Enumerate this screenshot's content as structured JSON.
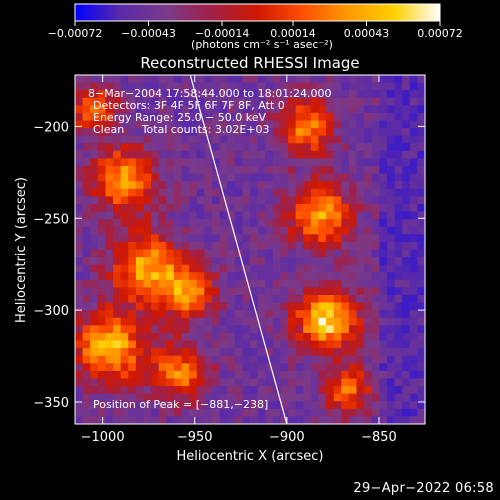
{
  "chart_data": {
    "type": "heatmap",
    "title": "Reconstructed RHESSI Image",
    "xlabel": "Heliocentric X (arcsec)",
    "ylabel": "Heliocentric Y (arcsec)",
    "xlim": [
      -1015,
      -825
    ],
    "ylim": [
      -362,
      -172
    ],
    "x_ticks": [
      -1000,
      -950,
      -900,
      -850
    ],
    "x_tick_labels": [
      "−1000",
      "−950",
      "−900",
      "−850"
    ],
    "y_ticks": [
      -200,
      -250,
      -300,
      -350
    ],
    "y_tick_labels": [
      "−200",
      "−250",
      "−300",
      "−350"
    ],
    "colorbar": {
      "ticks": [
        -0.00072,
        -0.00043,
        -0.00014,
        0.00014,
        0.00043,
        0.00072
      ],
      "tick_labels": [
        "−0.00072",
        "−0.00043",
        "−0.00014",
        "0.00014",
        "0.00043",
        "0.00072"
      ],
      "range": [
        -0.00072,
        0.00072
      ],
      "unit_label": "(photons cm⁻² s⁻¹ asec⁻²)",
      "colors": [
        "#0000ff",
        "#5a2aa8",
        "#7a3a8a",
        "#a02048",
        "#d01800",
        "#ff5000",
        "#ff9a00",
        "#ffd000",
        "#ffffff"
      ]
    },
    "annotations": [
      "8−Mar−2004 17:58:44.000 to 18:01:24.000",
      "Detectors: 3F 4F 5F 6F 7F 8F, Att 0",
      "Energy Range: 25.0 − 50.0 keV",
      "Clean     Total counts: 3.02E+03"
    ],
    "peak_label": "Position of Peak = [−881,−238]",
    "peak": [
      -881,
      -238
    ],
    "limb_line": [
      [
        -953,
        -170
      ],
      [
        -900,
        -362
      ]
    ],
    "grid": false,
    "image_grid_size": [
      46,
      46
    ]
  },
  "footer": {
    "timestamp": "29−Apr−2022 06:58"
  }
}
